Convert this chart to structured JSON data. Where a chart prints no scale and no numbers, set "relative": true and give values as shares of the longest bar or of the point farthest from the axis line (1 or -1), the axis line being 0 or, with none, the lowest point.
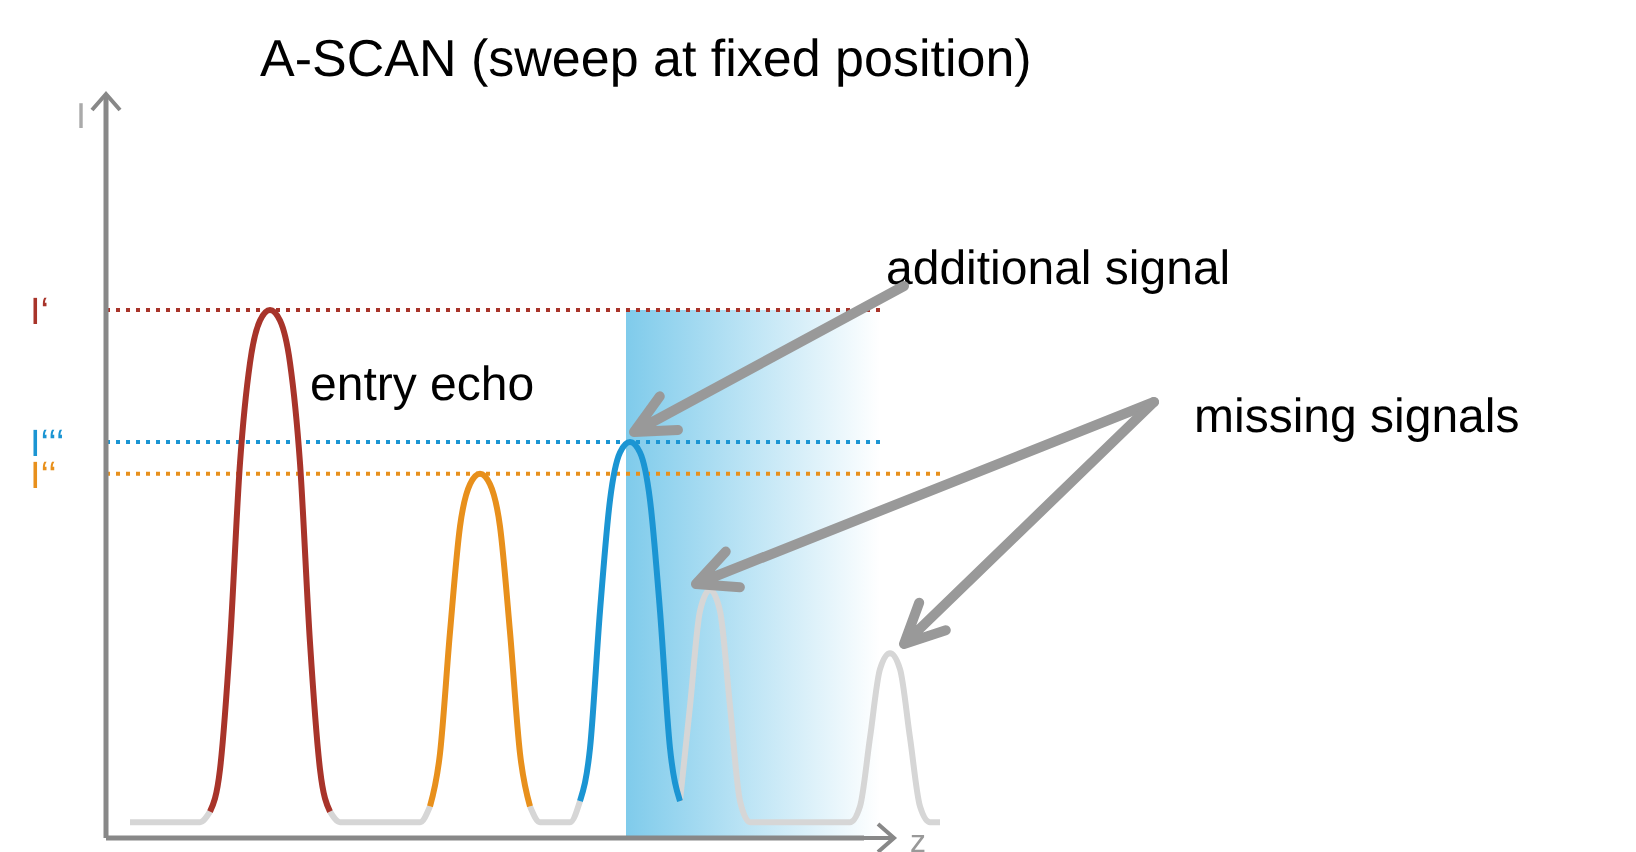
{
  "chart_data": {
    "type": "line",
    "title": "A-SCAN (sweep at fixed position)",
    "xlabel": "z",
    "ylabel": "I",
    "relative": true,
    "line_style": "solid",
    "categories": [
      null,
      null,
      null,
      null,
      null,
      null,
      null,
      null,
      null,
      null,
      null,
      null,
      null,
      null,
      null,
      null,
      null,
      null,
      null,
      null,
      null,
      null,
      null,
      null,
      null,
      null,
      null,
      null,
      null,
      null,
      null,
      null,
      null,
      null,
      null,
      null,
      null,
      null,
      null,
      null,
      null,
      null,
      null,
      null,
      null,
      null,
      null,
      null,
      null,
      null,
      null,
      null,
      null,
      null,
      null,
      null,
      null,
      null,
      null,
      null,
      null,
      null,
      null,
      null,
      null,
      null,
      null,
      null,
      null,
      null,
      null,
      null,
      null,
      null,
      null,
      null,
      null,
      null,
      null,
      null,
      null,
      null
    ],
    "series": [
      {
        "color": "#d6d6d6",
        "values": [
          0.03,
          0.03,
          0.03,
          0.03,
          0.03,
          0.03,
          0.03,
          0.03,
          0.05,
          null,
          null,
          null,
          null,
          null,
          null,
          null,
          null,
          null,
          null,
          null,
          0.05,
          0.03,
          0.03,
          0.03,
          0.03,
          0.03,
          0.03,
          0.03,
          0.03,
          0.03,
          0.06,
          null,
          null,
          null,
          null,
          null,
          null,
          null,
          null,
          null,
          0.06,
          0.03,
          0.03,
          0.03,
          0.03,
          0.07,
          null,
          null,
          null,
          null,
          null,
          null,
          null,
          null,
          null,
          0.07,
          0.25,
          0.43,
          0.47,
          0.43,
          0.25,
          0.07,
          0.03,
          0.03,
          0.03,
          0.03,
          0.03,
          0.03,
          0.03,
          0.03,
          0.03,
          0.03,
          0.03,
          0.06,
          0.19,
          0.32,
          0.35,
          0.32,
          0.19,
          0.06,
          0.03,
          0.03
        ]
      },
      {
        "color": "#a8342a",
        "values": [
          null,
          null,
          null,
          null,
          null,
          null,
          null,
          null,
          0.05,
          0.13,
          0.37,
          0.71,
          0.9,
          0.98,
          1,
          0.98,
          0.9,
          0.71,
          0.37,
          0.13,
          0.05,
          null,
          null,
          null,
          null,
          null,
          null,
          null,
          null,
          null,
          null,
          null,
          null,
          null,
          null,
          null,
          null,
          null,
          null,
          null,
          null,
          null,
          null,
          null,
          null,
          null,
          null,
          null,
          null,
          null,
          null,
          null,
          null,
          null,
          null,
          null,
          null,
          null,
          null,
          null,
          null,
          null,
          null,
          null,
          null,
          null,
          null,
          null,
          null,
          null,
          null,
          null,
          null,
          null,
          null,
          null,
          null,
          null,
          null,
          null,
          null,
          null
        ]
      },
      {
        "color": "#e8901c",
        "values": [
          null,
          null,
          null,
          null,
          null,
          null,
          null,
          null,
          null,
          null,
          null,
          null,
          null,
          null,
          null,
          null,
          null,
          null,
          null,
          null,
          null,
          null,
          null,
          null,
          null,
          null,
          null,
          null,
          null,
          null,
          0.06,
          0.16,
          0.39,
          0.59,
          0.67,
          0.69,
          0.67,
          0.59,
          0.39,
          0.16,
          0.06,
          null,
          null,
          null,
          null,
          null,
          null,
          null,
          null,
          null,
          null,
          null,
          null,
          null,
          null,
          null,
          null,
          null,
          null,
          null,
          null,
          null,
          null,
          null,
          null,
          null,
          null,
          null,
          null,
          null,
          null,
          null,
          null,
          null,
          null,
          null,
          null,
          null,
          null,
          null,
          null,
          null
        ]
      },
      {
        "color": "#1b95d3",
        "values": [
          null,
          null,
          null,
          null,
          null,
          null,
          null,
          null,
          null,
          null,
          null,
          null,
          null,
          null,
          null,
          null,
          null,
          null,
          null,
          null,
          null,
          null,
          null,
          null,
          null,
          null,
          null,
          null,
          null,
          null,
          null,
          null,
          null,
          null,
          null,
          null,
          null,
          null,
          null,
          null,
          null,
          null,
          null,
          null,
          null,
          0.07,
          0.17,
          0.43,
          0.64,
          0.73,
          0.75,
          0.73,
          0.64,
          0.43,
          0.17,
          0.07,
          null,
          null,
          null,
          null,
          null,
          null,
          null,
          null,
          null,
          null,
          null,
          null,
          null,
          null,
          null,
          null,
          null,
          null,
          null,
          null,
          null,
          null,
          null,
          null,
          null,
          null
        ]
      }
    ],
    "ref_lines": [
      {
        "axis": "y",
        "value": 1,
        "label": "I‘",
        "color": "#a8342a",
        "line_style": "dotted"
      },
      {
        "axis": "y",
        "value": 0.75,
        "label": "I‘‘‘",
        "color": "#1b95d3",
        "line_style": "dotted"
      },
      {
        "axis": "y",
        "value": 0.69,
        "label": "I‘‘",
        "color": "#e8901c",
        "line_style": "dotted"
      }
    ],
    "annotations": [
      "entry echo",
      "additional signal",
      "missing signals"
    ]
  }
}
